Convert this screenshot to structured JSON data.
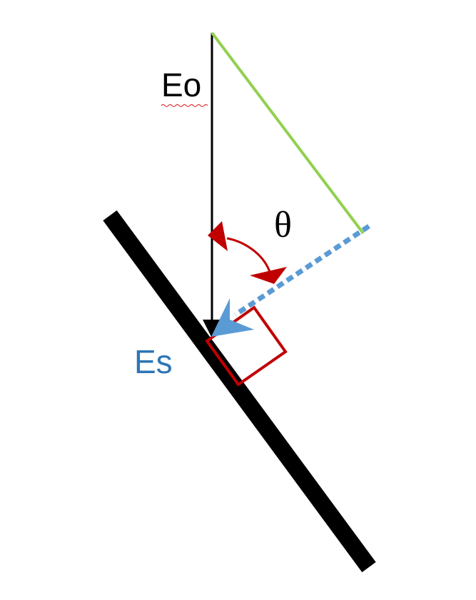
{
  "labels": {
    "eo": "Eo",
    "es": "Es",
    "theta": "θ"
  },
  "colors": {
    "surface": "#000000",
    "incident_vector": "#000000",
    "normal_line": "#5b9bd5",
    "scattered_vector": "#5b9bd5",
    "projection_line": "#92d050",
    "angle_arc": "#c00000",
    "right_angle_marker": "#c00000",
    "label_eo": "#000000",
    "label_es": "#2e75b6",
    "label_theta": "#000000",
    "spellcheck_underline": "#e04040"
  },
  "icons": {
    "angle_arrow": "double-headed-curved-arrow",
    "right_angle": "square-marker"
  }
}
